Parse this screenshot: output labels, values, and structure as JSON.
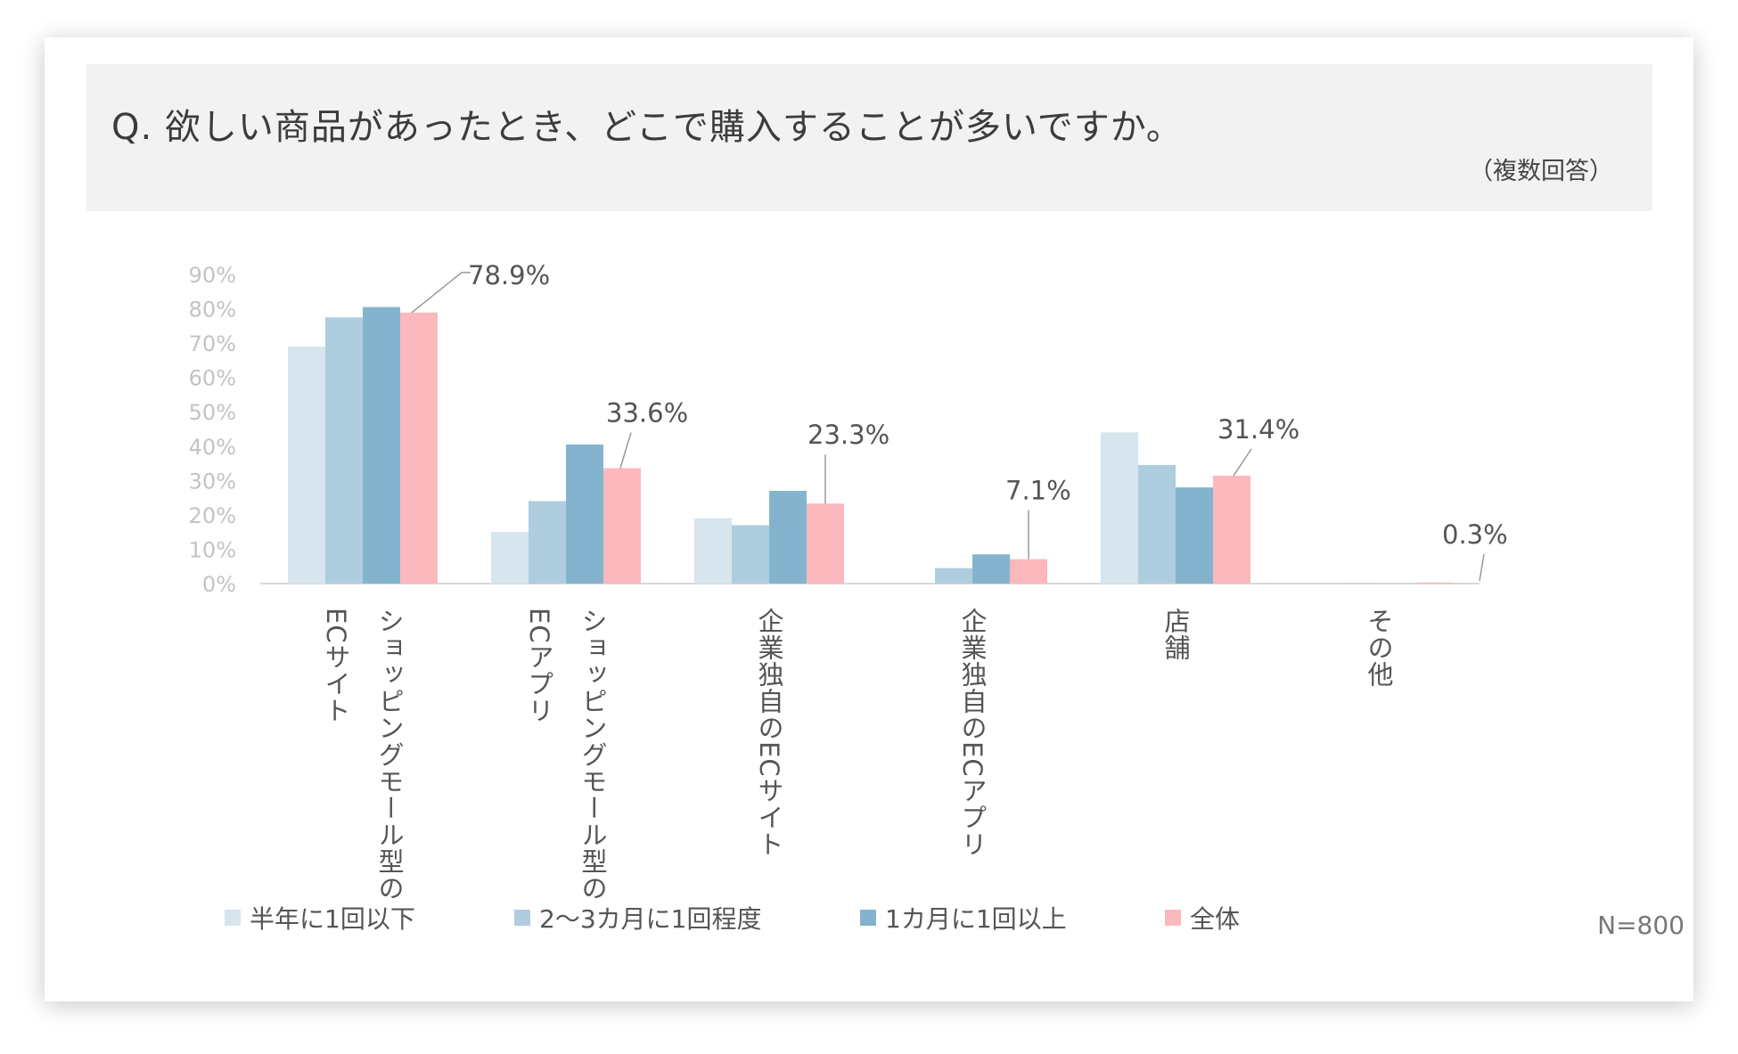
{
  "header": {
    "title": "Q.  欲しい商品があったとき、どこで購入することが多いですか。",
    "note": "（複数回答）"
  },
  "sample_size": "N=800",
  "colors": {
    "s1": "#d6e5ee",
    "s2": "#aecddf",
    "s3": "#84b4cd",
    "s4": "#fbb9bd"
  },
  "chart_data": {
    "type": "bar",
    "title": "欲しい商品があったとき、どこで購入することが多いですか。",
    "ylim": [
      0,
      90
    ],
    "yticks": [
      0,
      10,
      20,
      30,
      40,
      50,
      60,
      70,
      80,
      90
    ],
    "ytick_labels": [
      "0%",
      "10%",
      "20%",
      "30%",
      "40%",
      "50%",
      "60%",
      "70%",
      "80%",
      "90%"
    ],
    "categories": [
      [
        "ショッピングモール型の",
        "ECサイト"
      ],
      [
        "ショッピングモール型の",
        "ECアプリ"
      ],
      [
        "企業独自のECサイト"
      ],
      [
        "企業独自のECアプリ"
      ],
      [
        "店舗"
      ],
      [
        "その他"
      ]
    ],
    "series": [
      {
        "name": "半年に1回以下",
        "color": "#d6e5ee",
        "values": [
          69.0,
          15.0,
          19.0,
          0.0,
          44.0,
          0.0
        ]
      },
      {
        "name": "2〜3カ月に1回程度",
        "color": "#aecddf",
        "values": [
          77.5,
          24.0,
          17.0,
          4.5,
          34.5,
          0.1
        ]
      },
      {
        "name": "1カ月に1回以上",
        "color": "#84b4cd",
        "values": [
          80.5,
          40.5,
          27.0,
          8.5,
          28.0,
          0.0
        ]
      },
      {
        "name": "全体",
        "color": "#fbb9bd",
        "values": [
          78.9,
          33.6,
          23.3,
          7.1,
          31.4,
          0.3
        ]
      }
    ],
    "total_labels": [
      "78.9%",
      "33.6%",
      "23.3%",
      "7.1%",
      "31.4%",
      "0.3%"
    ],
    "legend_position": "bottom"
  }
}
